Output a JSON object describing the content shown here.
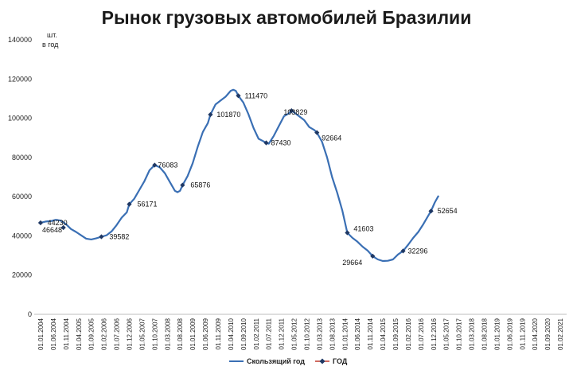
{
  "chart_data": {
    "type": "line",
    "title": "Рынок грузовых автомобилей Бразилии",
    "unit_label": [
      "шт.",
      "в год"
    ],
    "xlabel": "",
    "ylabel": "",
    "ylim": [
      0,
      140000
    ],
    "y_ticks": [
      0,
      20000,
      40000,
      60000,
      80000,
      100000,
      120000,
      140000
    ],
    "grid": false,
    "legend": "bottom",
    "x_categories": [
      "01.01.2004",
      "01.06.2004",
      "01.11.2004",
      "01.04.2005",
      "01.09.2005",
      "01.02.2006",
      "01.07.2006",
      "01.12.2006",
      "01.05.2007",
      "01.10.2007",
      "01.03.2008",
      "01.08.2008",
      "01.01.2009",
      "01.06.2009",
      "01.11.2009",
      "01.04.2010",
      "01.09.2010",
      "01.02.2011",
      "01.07.2011",
      "01.12.2011",
      "01.05.2012",
      "01.10.2012",
      "01.03.2013",
      "01.08.2013",
      "01.01.2014",
      "01.06.2014",
      "01.11.2014",
      "01.04.2015",
      "01.09.2015",
      "01.02.2016",
      "01.07.2016",
      "01.12.2016",
      "01.05.2017",
      "01.10.2017",
      "01.03.2018",
      "01.08.2018",
      "01.01.2019",
      "01.06.2019",
      "01.11.2019",
      "01.04.2020",
      "01.09.2020",
      "01.02.2021"
    ],
    "series": [
      {
        "name": "Скользящий год",
        "color": "#3a6fb4",
        "points": [
          [
            0,
            46648
          ],
          [
            0.4,
            47300
          ],
          [
            0.8,
            47500
          ],
          [
            1.2,
            48200
          ],
          [
            1.6,
            47800
          ],
          [
            2,
            46000
          ],
          [
            2.4,
            43500
          ],
          [
            2.8,
            42000
          ],
          [
            3.2,
            40300
          ],
          [
            3.6,
            38600
          ],
          [
            4,
            38200
          ],
          [
            4.4,
            38800
          ],
          [
            4.8,
            39582
          ],
          [
            5.2,
            40300
          ],
          [
            5.6,
            42300
          ],
          [
            6,
            45500
          ],
          [
            6.4,
            49300
          ],
          [
            6.8,
            52000
          ],
          [
            7,
            56171
          ],
          [
            7.4,
            59000
          ],
          [
            7.8,
            63500
          ],
          [
            8.2,
            68000
          ],
          [
            8.6,
            73500
          ],
          [
            9,
            76083
          ],
          [
            9.4,
            75000
          ],
          [
            9.8,
            72000
          ],
          [
            10.2,
            67500
          ],
          [
            10.6,
            63000
          ],
          [
            10.8,
            62300
          ],
          [
            11,
            63000
          ],
          [
            11.2,
            65876
          ],
          [
            11.6,
            70500
          ],
          [
            12,
            77000
          ],
          [
            12.4,
            85500
          ],
          [
            12.8,
            93000
          ],
          [
            13.2,
            97500
          ],
          [
            13.4,
            101870
          ],
          [
            13.8,
            107000
          ],
          [
            14.2,
            109000
          ],
          [
            14.6,
            111000
          ],
          [
            15,
            114000
          ],
          [
            15.2,
            114500
          ],
          [
            15.4,
            114000
          ],
          [
            15.6,
            111470
          ],
          [
            16,
            108000
          ],
          [
            16.4,
            102000
          ],
          [
            16.8,
            95000
          ],
          [
            17.2,
            89500
          ],
          [
            17.6,
            88200
          ],
          [
            17.8,
            87430
          ],
          [
            18,
            87000
          ],
          [
            18.4,
            91000
          ],
          [
            18.8,
            96000
          ],
          [
            19.2,
            101000
          ],
          [
            19.6,
            102500
          ],
          [
            19.8,
            103829
          ],
          [
            20,
            103000
          ],
          [
            20.4,
            101000
          ],
          [
            20.8,
            99000
          ],
          [
            21.2,
            95500
          ],
          [
            21.6,
            94000
          ],
          [
            21.8,
            92664
          ],
          [
            22.2,
            88000
          ],
          [
            22.6,
            80000
          ],
          [
            23,
            70000
          ],
          [
            23.4,
            62000
          ],
          [
            23.8,
            53000
          ],
          [
            24.2,
            41603
          ],
          [
            24.6,
            39000
          ],
          [
            25,
            37000
          ],
          [
            25.4,
            34500
          ],
          [
            25.8,
            32500
          ],
          [
            26.2,
            29664
          ],
          [
            26.6,
            28000
          ],
          [
            27,
            27200
          ],
          [
            27.4,
            27300
          ],
          [
            27.8,
            28000
          ],
          [
            28.2,
            30500
          ],
          [
            28.6,
            32296
          ],
          [
            29,
            35500
          ],
          [
            29.4,
            39000
          ],
          [
            29.8,
            42000
          ],
          [
            30.2,
            46000
          ],
          [
            30.6,
            50500
          ],
          [
            30.8,
            52654
          ],
          [
            31.1,
            57000
          ],
          [
            31.4,
            60500
          ]
        ]
      },
      {
        "name": "ГОД",
        "color": "#1f3864",
        "points": [
          [
            0,
            46648
          ],
          [
            1.8,
            44230
          ],
          [
            4.8,
            39582
          ],
          [
            7,
            56171
          ],
          [
            9,
            76083
          ],
          [
            11.2,
            65876
          ],
          [
            13.4,
            101870
          ],
          [
            15.6,
            111470
          ],
          [
            17.8,
            87430
          ],
          [
            19.8,
            103829
          ],
          [
            21.8,
            92664
          ],
          [
            24.2,
            41603
          ],
          [
            26.2,
            29664
          ],
          [
            28.6,
            32296
          ],
          [
            30.8,
            52654
          ]
        ],
        "labels": [
          "46648",
          "44230",
          "39582",
          "56171",
          "76083",
          "65876",
          "101870",
          "111470",
          "87430",
          "103829",
          "92664",
          "41603",
          "29664",
          "32296",
          "52654"
        ]
      }
    ]
  }
}
